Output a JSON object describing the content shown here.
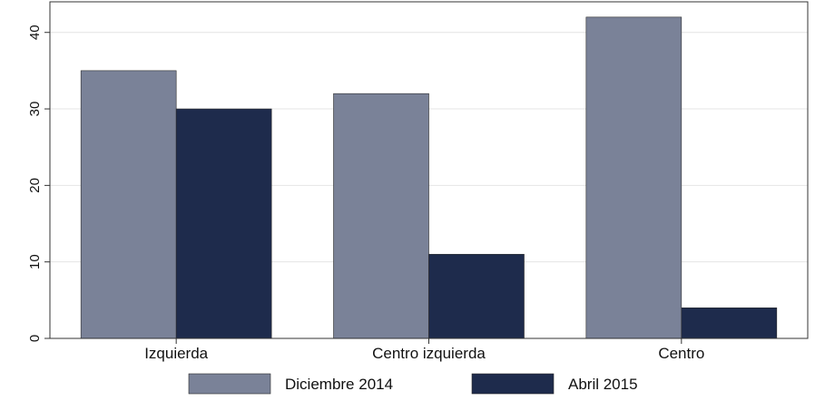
{
  "chart_data": {
    "type": "bar",
    "title": "",
    "xlabel": "",
    "ylabel": "",
    "categories": [
      "Izquierda",
      "Centro izquierda",
      "Centro"
    ],
    "series": [
      {
        "name": "Diciembre 2014",
        "values": [
          35,
          32,
          42
        ],
        "color": "#7a8298"
      },
      {
        "name": "Abril 2015",
        "values": [
          30,
          11,
          4
        ],
        "color": "#1e2b4c"
      }
    ],
    "ylim": [
      0,
      44
    ],
    "yticks": [
      0,
      10,
      20,
      30,
      40
    ],
    "yticks_labels": [
      "0",
      "10",
      "20",
      "30",
      "40"
    ],
    "grid": true,
    "legend_position": "bottom"
  }
}
